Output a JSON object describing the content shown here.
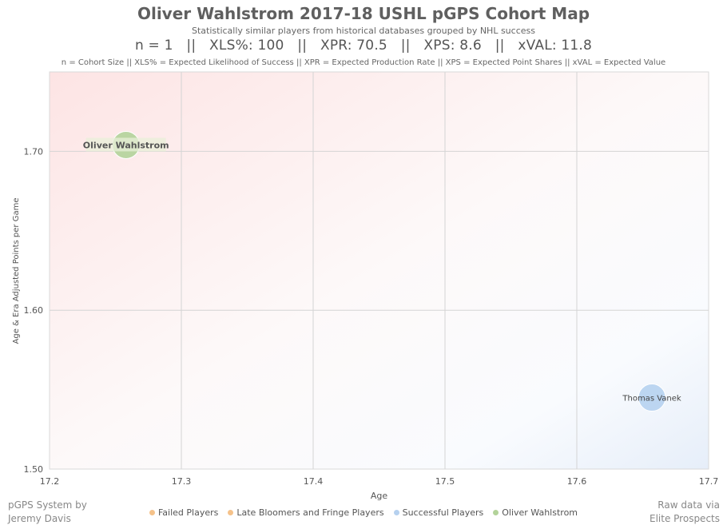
{
  "header": {
    "title": "Oliver Wahlstrom 2017-18 USHL pGPS Cohort Map",
    "subtitle": "Statistically similar players from historical databases grouped by NHL success",
    "stats_line": "n = 1   ||   XLS%: 100   ||   XPR: 70.5   ||   XPS: 8.6   ||   xVAL: 11.8",
    "abbrev_note": "n = Cohort Size || XLS% = Expected Likelihood of Success || XPR = Expected Production Rate || XPS = Expected Point Shares || xVAL = Expected Value"
  },
  "credits": {
    "left_line1": "pGPS System by",
    "left_line2": "Jeremy Davis",
    "right_line1": "Raw data via",
    "right_line2": "Elite Prospects"
  },
  "chart_data": {
    "type": "scatter",
    "xlabel": "Age",
    "ylabel": "Age & Era Adjusted Points per Game",
    "xlim": [
      17.2,
      17.7
    ],
    "ylim": [
      1.5,
      1.75
    ],
    "x_ticks": [
      "17.2",
      "17.3",
      "17.4",
      "17.5",
      "17.6",
      "17.7"
    ],
    "y_ticks": [
      "1.50",
      "1.60",
      "1.70"
    ],
    "grid": true,
    "legend_position": "bottom",
    "legend": [
      {
        "label": "Failed Players",
        "color": "#f5c28a"
      },
      {
        "label": "Late Bloomers and Fringe Players",
        "color": "#f5c28a"
      },
      {
        "label": "Successful Players",
        "color": "#b6d1ef"
      },
      {
        "label": "Oliver Wahlstrom",
        "color": "#b3d39a"
      }
    ],
    "points": [
      {
        "label": "Oliver Wahlstrom",
        "x": 17.258,
        "y": 1.704,
        "group": "Oliver Wahlstrom",
        "color": "#b3d39a"
      },
      {
        "label": "Thomas Vanek",
        "x": 17.657,
        "y": 1.545,
        "group": "Successful Players",
        "color": "#b6d1ef"
      }
    ]
  }
}
